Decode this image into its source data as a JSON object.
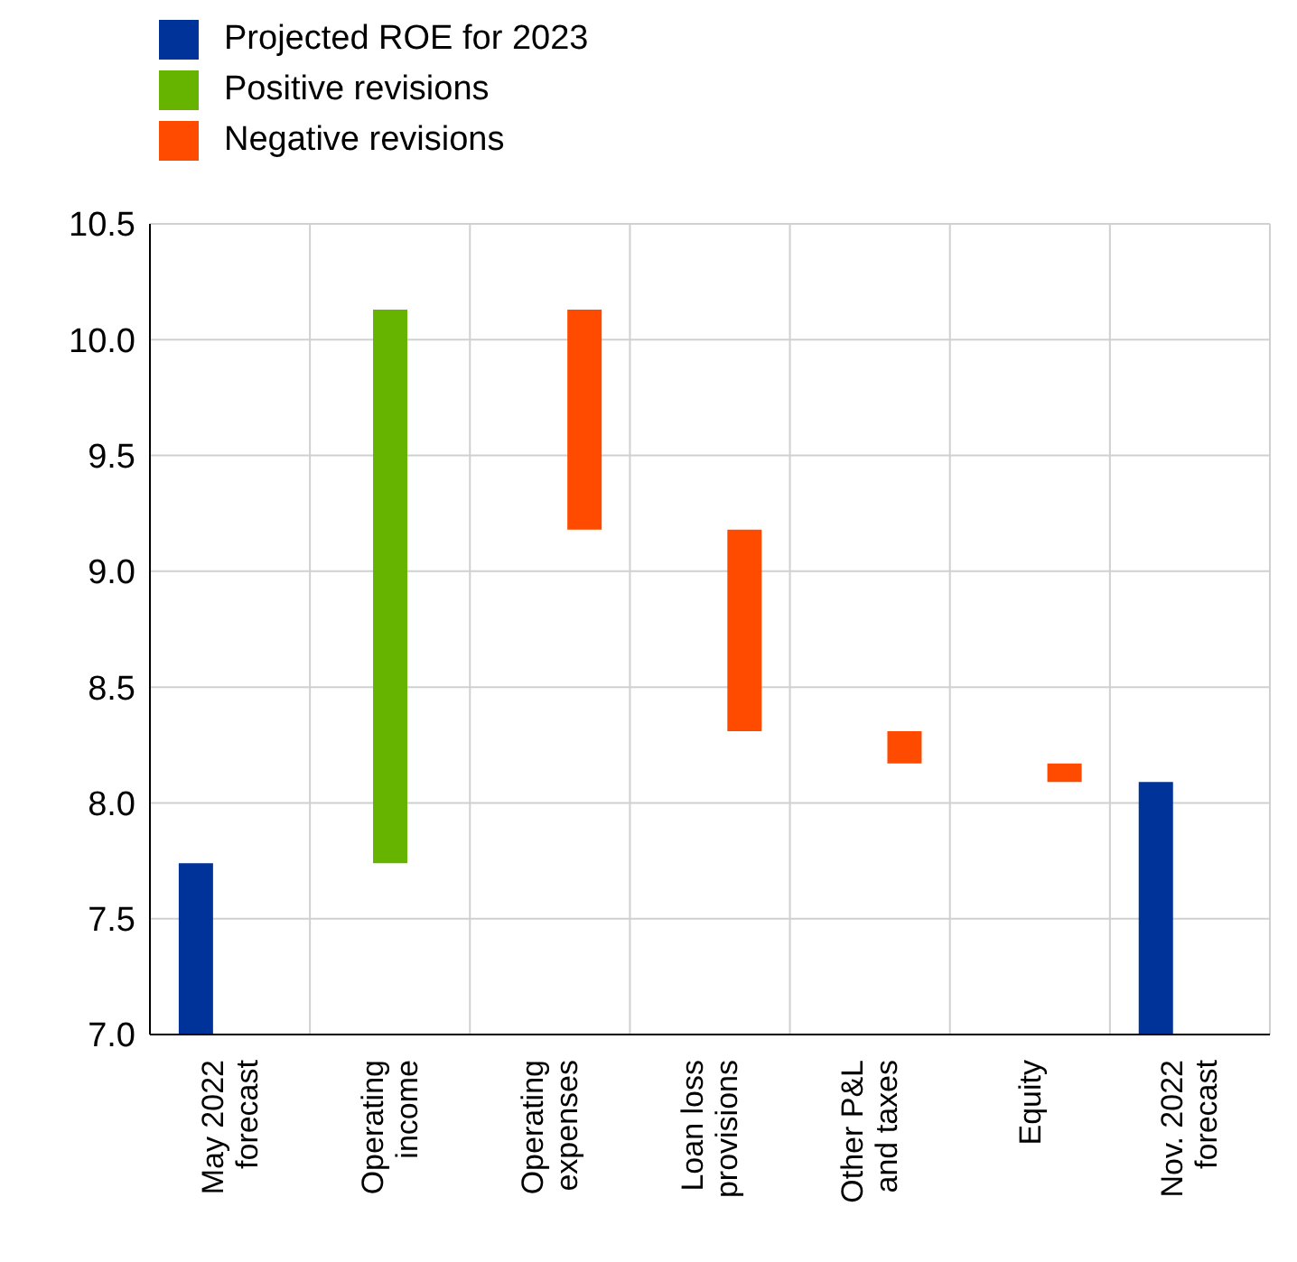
{
  "chart_data": {
    "type": "bar",
    "categories": [
      "May 2022\nforecast",
      "Operating\nincome",
      "Operating\nexpenses",
      "Loan loss\nprovisions",
      "Other P&L\nand taxes",
      "Equity",
      "Nov. 2022\nforecast"
    ],
    "series": [
      {
        "name": "Projected ROE for 2023",
        "color": "#003399",
        "values": [
          7.74,
          null,
          null,
          null,
          null,
          null,
          8.09
        ]
      },
      {
        "name": "Positive revisions",
        "color": "#66b300",
        "base": [
          null,
          7.74,
          null,
          null,
          null,
          null,
          null
        ],
        "values": [
          null,
          2.39,
          null,
          null,
          null,
          null,
          null
        ]
      },
      {
        "name": "Negative revisions",
        "color": "#ff4b00",
        "base": [
          null,
          null,
          10.13,
          9.18,
          8.31,
          8.17,
          null
        ],
        "values": [
          null,
          null,
          -0.95,
          -0.87,
          -0.14,
          -0.08,
          null
        ]
      }
    ],
    "ylim": [
      7.0,
      10.5
    ],
    "yticks": [
      {
        "value": 7.0,
        "label": "7.0"
      },
      {
        "value": 7.5,
        "label": "7.5"
      },
      {
        "value": 8.0,
        "label": "8.0"
      },
      {
        "value": 8.5,
        "label": "8.5"
      },
      {
        "value": 9.0,
        "label": "9.0"
      },
      {
        "value": 9.5,
        "label": "9.5"
      },
      {
        "value": 10.0,
        "label": "10.0"
      },
      {
        "value": 10.5,
        "label": "10.5"
      }
    ],
    "grid": true,
    "legend": "top left"
  }
}
